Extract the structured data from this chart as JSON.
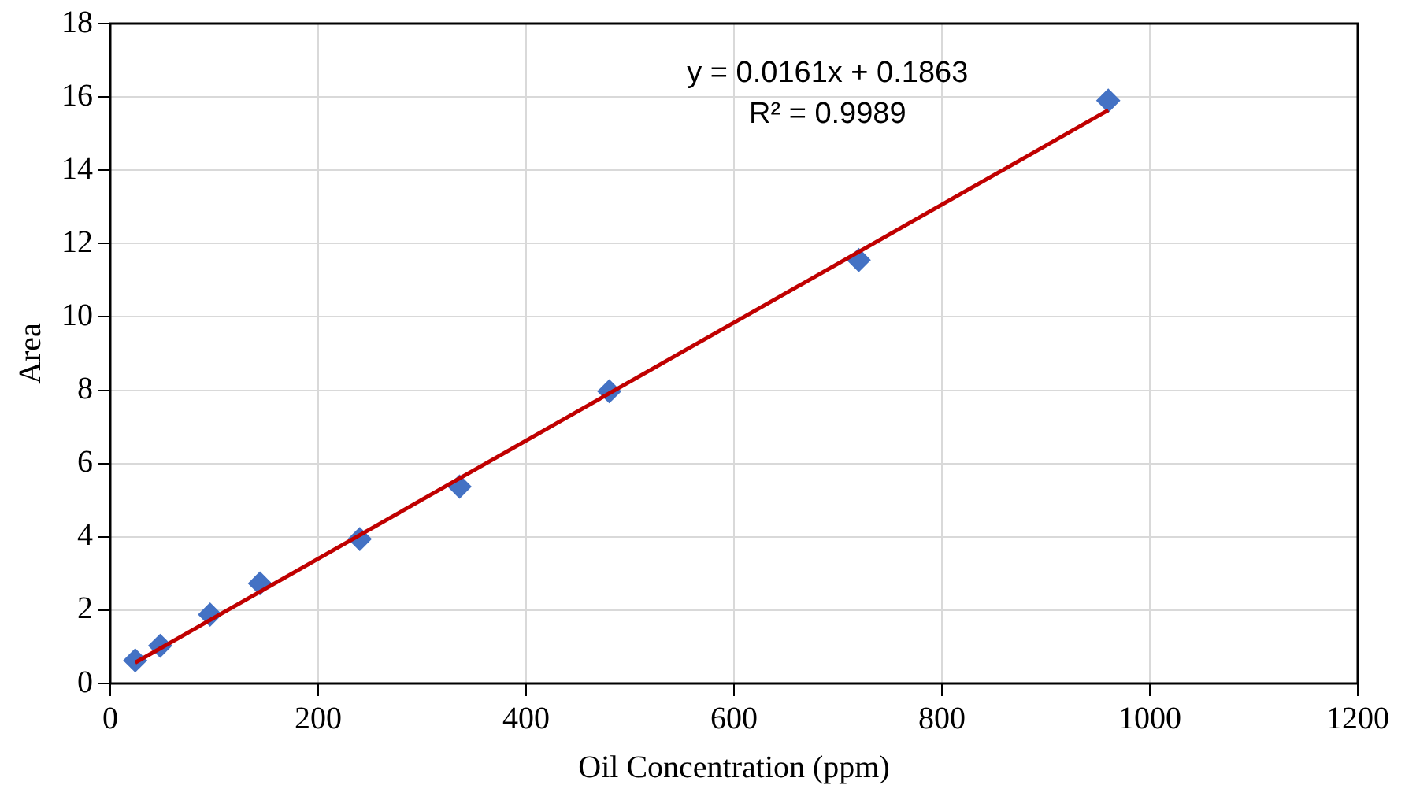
{
  "chart_data": {
    "type": "scatter",
    "xlabel": "Oil Concentration (ppm)",
    "ylabel": "Area",
    "series": [
      {
        "type": "scatter",
        "color": "#4472c4",
        "marker": "diamond",
        "x": [
          24,
          48,
          96,
          144,
          240,
          336,
          480,
          720,
          960
        ],
        "values": [
          0.63,
          1.03,
          1.88,
          2.73,
          3.94,
          5.37,
          7.97,
          11.55,
          15.9
        ]
      },
      {
        "type": "line",
        "color": "#c00000",
        "marker": "none",
        "line_style": "solid",
        "x": [
          24,
          960
        ],
        "values": [
          0.57,
          15.64
        ]
      }
    ],
    "xlim": [
      0,
      1200
    ],
    "xticks": [
      0,
      200,
      400,
      600,
      800,
      1000,
      1200
    ],
    "ylim": [
      0,
      18
    ],
    "yticks": [
      0,
      2,
      4,
      6,
      8,
      10,
      12,
      14,
      16,
      18
    ],
    "grid": true,
    "legend": false,
    "annotations": [
      "y = 0.0161x + 0.1863",
      "R² = 0.9989"
    ]
  }
}
